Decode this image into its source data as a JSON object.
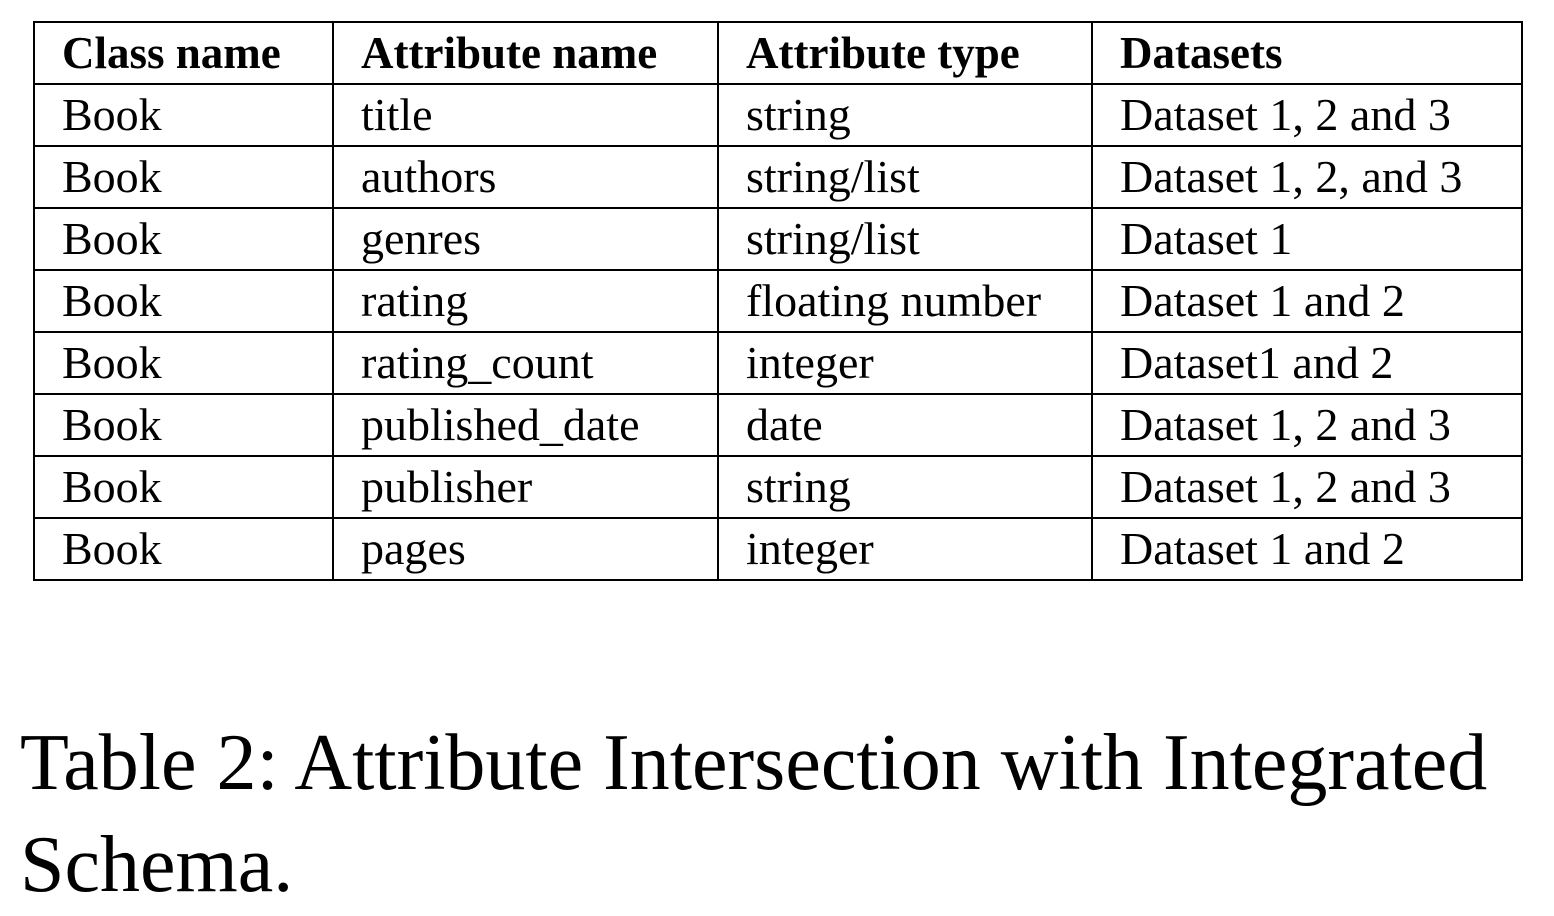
{
  "table": {
    "headers": [
      "Class name",
      "Attribute name",
      "Attribute type",
      "Datasets"
    ],
    "rows": [
      [
        "Book",
        "title",
        "string",
        "Dataset 1, 2 and 3"
      ],
      [
        "Book",
        "authors",
        "string/list",
        "Dataset 1, 2, and 3"
      ],
      [
        "Book",
        "genres",
        "string/list",
        "Dataset 1"
      ],
      [
        "Book",
        "rating",
        "floating number",
        "Dataset 1 and 2"
      ],
      [
        "Book",
        "rating_count",
        "integer",
        "Dataset1 and 2"
      ],
      [
        "Book",
        "published_date",
        "date",
        "Dataset 1, 2 and 3"
      ],
      [
        "Book",
        "publisher",
        "string",
        "Dataset 1, 2 and 3"
      ],
      [
        "Book",
        "pages",
        "integer",
        "Dataset 1 and 2"
      ]
    ]
  },
  "caption": "Table 2: Attribute Intersection with Integrated Schema."
}
